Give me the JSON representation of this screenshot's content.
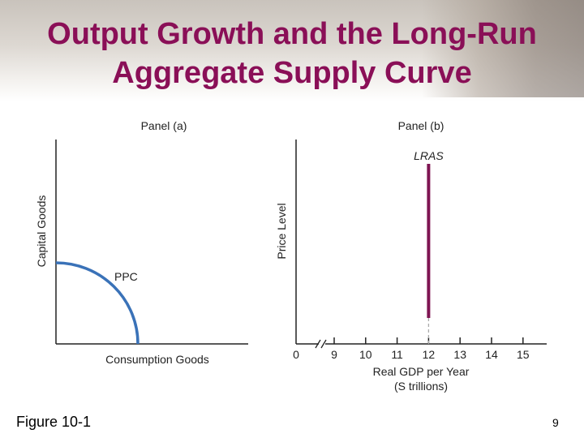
{
  "slide": {
    "title": "Output Growth and the Long-Run\nAggregate  Supply Curve",
    "figure_label": "Figure 10-1",
    "page_number": "9"
  },
  "panel_a": {
    "title": "Panel (a)",
    "y_axis_label": "Capital Goods",
    "x_axis_label": "Consumption Goods",
    "curve_label": "PPC"
  },
  "panel_b": {
    "title": "Panel (b)",
    "y_axis_label": "Price Level",
    "x_axis_label_line1": "Real GDP per Year",
    "x_axis_label_line2": "(S trillions)",
    "curve_label": "LRAS",
    "origin_label": "0",
    "ticks": [
      "9",
      "10",
      "11",
      "12",
      "13",
      "14",
      "15"
    ],
    "lras_at": 12
  },
  "colors": {
    "title": "#8a0f57",
    "ppc_curve": "#3a72b8",
    "lras_curve": "#7e1452"
  }
}
